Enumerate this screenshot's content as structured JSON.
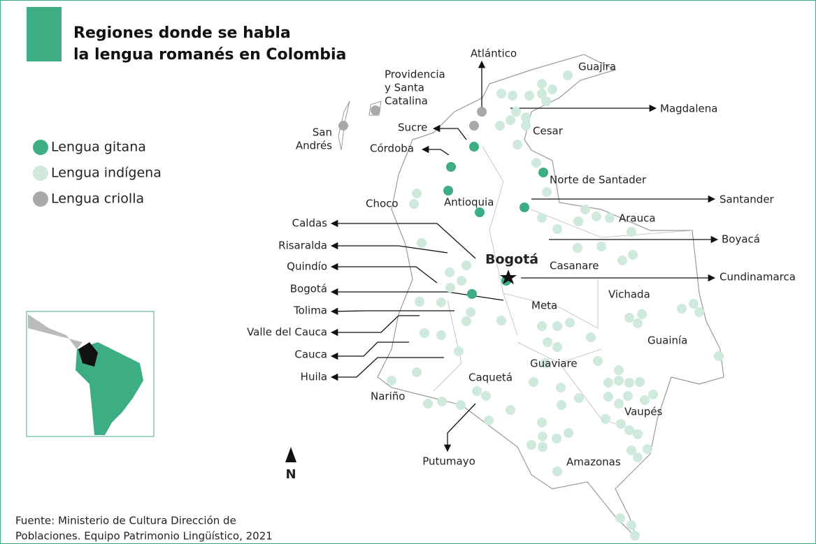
{
  "title": [
    "Regiones donde se habla",
    "la lengua romanés en Colombia"
  ],
  "legend": [
    {
      "label": "Lengua gitana",
      "color": "#3dae83"
    },
    {
      "label": "Lengua indígena",
      "color": "#cfe9dc"
    },
    {
      "label": "Lengua criolla",
      "color": "#a9a9a9"
    }
  ],
  "capital": "Bogotá",
  "north": "N",
  "regions": [
    {
      "lines": [
        "Atlántico"
      ]
    },
    {
      "lines": [
        "Guajira"
      ]
    },
    {
      "lines": [
        "Providencia",
        "y Santa",
        "Catalina"
      ]
    },
    {
      "lines": [
        "San",
        "Andrés"
      ]
    },
    {
      "lines": [
        "Magdalena"
      ]
    },
    {
      "lines": [
        "Cesar"
      ]
    },
    {
      "lines": [
        "Sucre"
      ]
    },
    {
      "lines": [
        "Córdoba"
      ]
    },
    {
      "lines": [
        "Norte de Santader"
      ]
    },
    {
      "lines": [
        "Santander"
      ]
    },
    {
      "lines": [
        "Choco"
      ]
    },
    {
      "lines": [
        "Antioquia"
      ]
    },
    {
      "lines": [
        "Arauca"
      ]
    },
    {
      "lines": [
        "Caldas"
      ]
    },
    {
      "lines": [
        "Boyacá"
      ]
    },
    {
      "lines": [
        "Risaralda"
      ]
    },
    {
      "lines": [
        "Casanare"
      ]
    },
    {
      "lines": [
        "Quindío"
      ]
    },
    {
      "lines": [
        "Bogotá"
      ]
    },
    {
      "lines": [
        "Cundinamarca"
      ]
    },
    {
      "lines": [
        "Vichada"
      ]
    },
    {
      "lines": [
        "Tolima"
      ]
    },
    {
      "lines": [
        "Meta"
      ]
    },
    {
      "lines": [
        "Valle del Cauca"
      ]
    },
    {
      "lines": [
        "Guainía"
      ]
    },
    {
      "lines": [
        "Cauca"
      ]
    },
    {
      "lines": [
        "Guaviare"
      ]
    },
    {
      "lines": [
        "Huila"
      ]
    },
    {
      "lines": [
        "Caquetá"
      ]
    },
    {
      "lines": [
        "Nariño"
      ]
    },
    {
      "lines": [
        "Vaupés"
      ]
    },
    {
      "lines": [
        "Putumayo"
      ]
    },
    {
      "lines": [
        "Amazonas"
      ]
    }
  ],
  "source": [
    "Fuente: Ministerio de Cultura Dirección de",
    "Poblaciones. Equipo Patrimonio Lingüístico, 2021"
  ]
}
